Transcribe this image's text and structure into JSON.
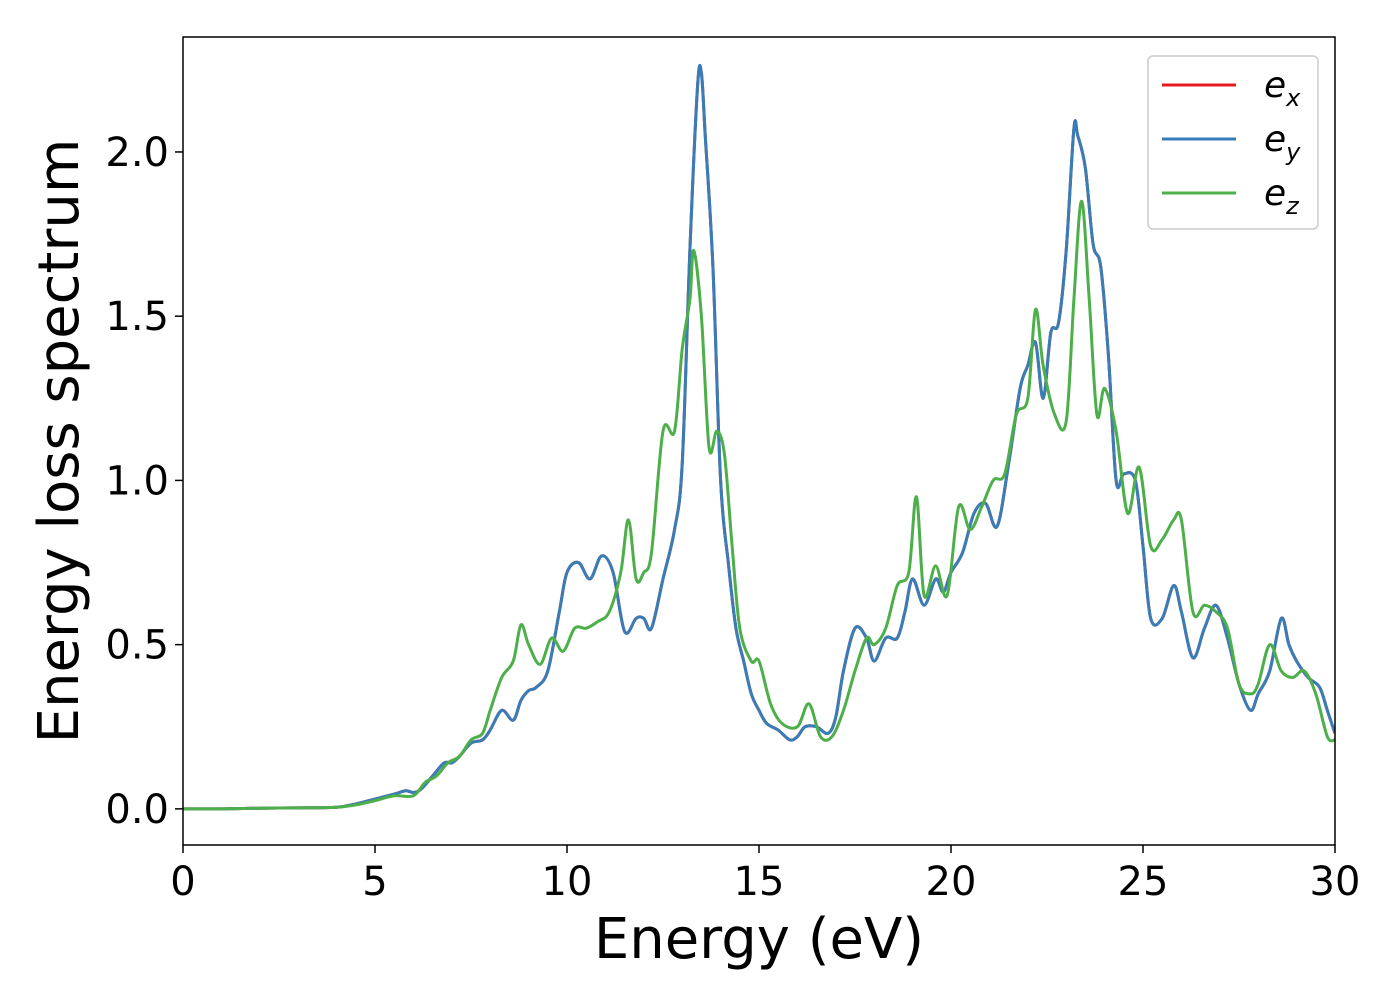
{
  "chart_data": {
    "type": "line",
    "xlabel": "Energy (eV)",
    "ylabel": "Energy loss spectrum",
    "xlim": [
      0,
      30
    ],
    "ylim": [
      -0.11,
      2.35
    ],
    "xticks": [
      0,
      5,
      10,
      15,
      20,
      25,
      30
    ],
    "xtick_labels": [
      "0",
      "5",
      "10",
      "15",
      "20",
      "25",
      "30"
    ],
    "yticks": [
      0.0,
      0.5,
      1.0,
      1.5,
      2.0
    ],
    "ytick_labels": [
      "0.0",
      "0.5",
      "1.0",
      "1.5",
      "2.0"
    ],
    "grid": false,
    "legend_position": "top-right",
    "series": [
      {
        "name": "e_x",
        "label_main": "e",
        "label_sub": "x",
        "color": "#e41a1c",
        "x": [
          0,
          1,
          2,
          3,
          4,
          4.5,
          5,
          5.5,
          5.8,
          6,
          6.2,
          6.5,
          6.8,
          7,
          7.2,
          7.5,
          7.8,
          8,
          8.3,
          8.6,
          8.8,
          9,
          9.2,
          9.5,
          9.8,
          10,
          10.3,
          10.6,
          10.9,
          11.2,
          11.5,
          11.8,
          12,
          12.2,
          12.5,
          12.8,
          13,
          13.2,
          13.4,
          13.5,
          13.6,
          13.8,
          14,
          14.2,
          14.4,
          14.6,
          14.8,
          15,
          15.2,
          15.5,
          15.8,
          16,
          16.2,
          16.5,
          16.8,
          17,
          17.2,
          17.5,
          17.8,
          18,
          18.3,
          18.6,
          18.8,
          19,
          19.3,
          19.6,
          19.8,
          20,
          20.3,
          20.6,
          20.9,
          21.2,
          21.5,
          21.8,
          22,
          22.2,
          22.4,
          22.6,
          22.8,
          23,
          23.2,
          23.3,
          23.5,
          23.7,
          23.9,
          24.1,
          24.3,
          24.5,
          24.8,
          25,
          25.2,
          25.5,
          25.8,
          26,
          26.3,
          26.6,
          26.9,
          27.2,
          27.5,
          27.8,
          28,
          28.3,
          28.6,
          28.8,
          29,
          29.3,
          29.6,
          29.8,
          30
        ],
        "y": [
          0,
          0,
          0.002,
          0.003,
          0.005,
          0.015,
          0.03,
          0.045,
          0.055,
          0.05,
          0.06,
          0.1,
          0.14,
          0.14,
          0.16,
          0.2,
          0.21,
          0.24,
          0.3,
          0.27,
          0.33,
          0.36,
          0.37,
          0.42,
          0.6,
          0.72,
          0.75,
          0.7,
          0.77,
          0.72,
          0.54,
          0.58,
          0.58,
          0.55,
          0.7,
          0.85,
          1.05,
          1.7,
          2.2,
          2.24,
          2.05,
          1.65,
          1.0,
          0.75,
          0.55,
          0.45,
          0.35,
          0.3,
          0.26,
          0.24,
          0.21,
          0.22,
          0.25,
          0.25,
          0.23,
          0.28,
          0.42,
          0.55,
          0.52,
          0.45,
          0.52,
          0.52,
          0.6,
          0.7,
          0.62,
          0.7,
          0.66,
          0.72,
          0.78,
          0.9,
          0.93,
          0.86,
          1.05,
          1.28,
          1.35,
          1.42,
          1.25,
          1.45,
          1.48,
          1.7,
          2.07,
          2.05,
          1.95,
          1.72,
          1.65,
          1.38,
          1.0,
          1.02,
          1.0,
          0.8,
          0.58,
          0.58,
          0.68,
          0.6,
          0.46,
          0.55,
          0.62,
          0.52,
          0.38,
          0.3,
          0.35,
          0.42,
          0.58,
          0.5,
          0.45,
          0.4,
          0.37,
          0.3,
          0.23
        ]
      },
      {
        "name": "e_y",
        "label_main": "e",
        "label_sub": "y",
        "color": "#377eb8",
        "x": [
          0,
          1,
          2,
          3,
          4,
          4.5,
          5,
          5.5,
          5.8,
          6,
          6.2,
          6.5,
          6.8,
          7,
          7.2,
          7.5,
          7.8,
          8,
          8.3,
          8.6,
          8.8,
          9,
          9.2,
          9.5,
          9.8,
          10,
          10.3,
          10.6,
          10.9,
          11.2,
          11.5,
          11.8,
          12,
          12.2,
          12.5,
          12.8,
          13,
          13.2,
          13.4,
          13.5,
          13.6,
          13.8,
          14,
          14.2,
          14.4,
          14.6,
          14.8,
          15,
          15.2,
          15.5,
          15.8,
          16,
          16.2,
          16.5,
          16.8,
          17,
          17.2,
          17.5,
          17.8,
          18,
          18.3,
          18.6,
          18.8,
          19,
          19.3,
          19.6,
          19.8,
          20,
          20.3,
          20.6,
          20.9,
          21.2,
          21.5,
          21.8,
          22,
          22.2,
          22.4,
          22.6,
          22.8,
          23,
          23.2,
          23.3,
          23.5,
          23.7,
          23.9,
          24.1,
          24.3,
          24.5,
          24.8,
          25,
          25.2,
          25.5,
          25.8,
          26,
          26.3,
          26.6,
          26.9,
          27.2,
          27.5,
          27.8,
          28,
          28.3,
          28.6,
          28.8,
          29,
          29.3,
          29.6,
          29.8,
          30
        ],
        "y": [
          0,
          0,
          0.002,
          0.003,
          0.005,
          0.015,
          0.03,
          0.045,
          0.055,
          0.05,
          0.06,
          0.1,
          0.14,
          0.14,
          0.16,
          0.2,
          0.21,
          0.24,
          0.3,
          0.27,
          0.33,
          0.36,
          0.37,
          0.42,
          0.6,
          0.72,
          0.75,
          0.7,
          0.77,
          0.72,
          0.54,
          0.58,
          0.58,
          0.55,
          0.7,
          0.85,
          1.05,
          1.7,
          2.2,
          2.24,
          2.05,
          1.65,
          1.0,
          0.75,
          0.55,
          0.45,
          0.35,
          0.3,
          0.26,
          0.24,
          0.21,
          0.22,
          0.25,
          0.25,
          0.23,
          0.28,
          0.42,
          0.55,
          0.52,
          0.45,
          0.52,
          0.52,
          0.6,
          0.7,
          0.62,
          0.7,
          0.66,
          0.72,
          0.78,
          0.9,
          0.93,
          0.86,
          1.05,
          1.28,
          1.35,
          1.42,
          1.25,
          1.45,
          1.48,
          1.7,
          2.07,
          2.05,
          1.95,
          1.72,
          1.65,
          1.38,
          1.0,
          1.02,
          1.0,
          0.8,
          0.58,
          0.58,
          0.68,
          0.6,
          0.46,
          0.55,
          0.62,
          0.52,
          0.38,
          0.3,
          0.35,
          0.42,
          0.58,
          0.5,
          0.45,
          0.4,
          0.37,
          0.3,
          0.23
        ]
      },
      {
        "name": "e_z",
        "label_main": "e",
        "label_sub": "z",
        "color": "#4daf4a",
        "x": [
          0,
          1,
          2,
          3,
          4,
          4.5,
          5,
          5.5,
          6,
          6.3,
          6.6,
          6.9,
          7.2,
          7.5,
          7.8,
          8,
          8.3,
          8.6,
          8.8,
          9,
          9.3,
          9.6,
          9.9,
          10.2,
          10.5,
          10.8,
          11.1,
          11.4,
          11.6,
          11.8,
          12,
          12.2,
          12.5,
          12.8,
          13.0,
          13.2,
          13.3,
          13.5,
          13.7,
          13.9,
          14.1,
          14.3,
          14.5,
          14.8,
          15,
          15.3,
          15.6,
          16,
          16.3,
          16.6,
          16.9,
          17.2,
          17.5,
          17.8,
          18,
          18.3,
          18.6,
          18.9,
          19.1,
          19.3,
          19.6,
          19.9,
          20.2,
          20.5,
          20.8,
          21.1,
          21.4,
          21.7,
          22,
          22.2,
          22.4,
          22.7,
          23,
          23.2,
          23.4,
          23.6,
          23.8,
          24,
          24.3,
          24.6,
          24.9,
          25.2,
          25.5,
          25.8,
          26,
          26.3,
          26.6,
          26.9,
          27.2,
          27.5,
          27.8,
          28,
          28.3,
          28.6,
          28.9,
          29.2,
          29.5,
          29.8,
          30
        ],
        "y": [
          0,
          0,
          0.002,
          0.003,
          0.005,
          0.012,
          0.025,
          0.04,
          0.04,
          0.08,
          0.1,
          0.14,
          0.16,
          0.21,
          0.23,
          0.3,
          0.4,
          0.45,
          0.56,
          0.5,
          0.44,
          0.52,
          0.48,
          0.55,
          0.55,
          0.57,
          0.6,
          0.72,
          0.88,
          0.7,
          0.72,
          0.78,
          1.15,
          1.15,
          1.4,
          1.55,
          1.7,
          1.5,
          1.1,
          1.15,
          1.08,
          0.8,
          0.55,
          0.45,
          0.45,
          0.32,
          0.26,
          0.25,
          0.32,
          0.22,
          0.22,
          0.3,
          0.42,
          0.52,
          0.5,
          0.55,
          0.68,
          0.72,
          0.95,
          0.65,
          0.74,
          0.65,
          0.92,
          0.85,
          0.92,
          1.0,
          1.02,
          1.2,
          1.25,
          1.52,
          1.35,
          1.2,
          1.18,
          1.55,
          1.85,
          1.55,
          1.2,
          1.28,
          1.15,
          0.9,
          1.04,
          0.8,
          0.82,
          0.88,
          0.88,
          0.6,
          0.62,
          0.6,
          0.55,
          0.38,
          0.35,
          0.38,
          0.5,
          0.42,
          0.4,
          0.42,
          0.35,
          0.22,
          0.21
        ]
      }
    ]
  }
}
